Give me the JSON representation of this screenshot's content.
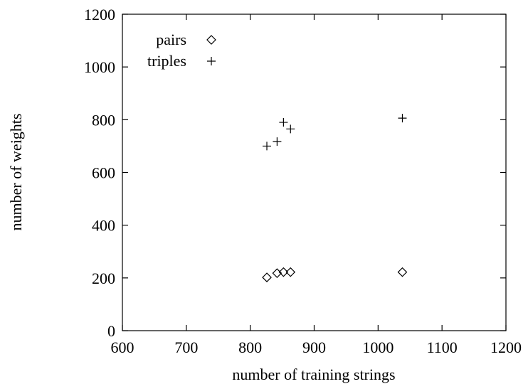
{
  "chart_data": {
    "type": "scatter",
    "title": "",
    "xlabel": "number of training strings",
    "ylabel": "number of weights",
    "xlim": [
      600,
      1200
    ],
    "ylim": [
      0,
      1200
    ],
    "xticks": [
      600,
      700,
      800,
      900,
      1000,
      1100,
      1200
    ],
    "yticks": [
      0,
      200,
      400,
      600,
      800,
      1000,
      1200
    ],
    "grid": false,
    "legend_position": "top-left",
    "series": [
      {
        "name": "pairs",
        "marker": "diamond",
        "x": [
          826,
          842,
          852,
          863,
          1038
        ],
        "y": [
          202,
          218,
          222,
          222,
          222
        ]
      },
      {
        "name": "triples",
        "marker": "plus",
        "x": [
          826,
          842,
          852,
          863,
          1038
        ],
        "y": [
          700,
          717,
          790,
          765,
          806
        ]
      }
    ]
  }
}
